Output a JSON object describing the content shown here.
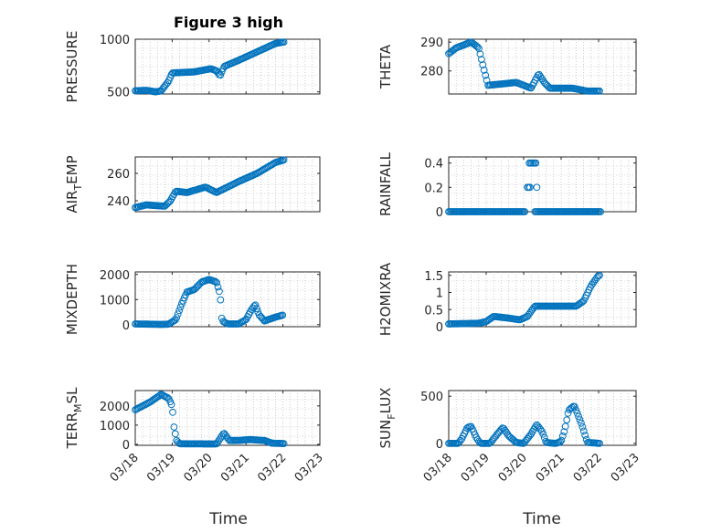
{
  "figure_title": "Figure 3 high",
  "xlabel": "Time",
  "x_ticks": [
    "03/18",
    "03/19",
    "03/20",
    "03/21",
    "03/22",
    "03/23"
  ],
  "marker_color": "#0072BD",
  "chart_data": [
    {
      "type": "scatter",
      "title": "Figure 3 high",
      "ylabel": {
        "main": "PRESSURE",
        "sub": "",
        "tail": ""
      },
      "ylim": [
        480,
        1000
      ],
      "yticks": [
        {
          "v": 500,
          "label": "500"
        },
        {
          "v": 1000,
          "label": "1000"
        }
      ],
      "xlim": [
        0,
        5
      ],
      "series": [
        {
          "knots": [
            [
              0.0,
              510
            ],
            [
              0.3,
              515
            ],
            [
              0.55,
              500
            ],
            [
              0.7,
              510
            ],
            [
              0.9,
              600
            ],
            [
              1.0,
              680
            ],
            [
              1.6,
              690
            ],
            [
              2.05,
              720
            ],
            [
              2.2,
              700
            ],
            [
              2.3,
              650
            ],
            [
              2.4,
              740
            ],
            [
              2.8,
              800
            ],
            [
              3.3,
              880
            ],
            [
              3.8,
              960
            ],
            [
              4.05,
              975
            ]
          ]
        }
      ]
    },
    {
      "type": "scatter",
      "title": "",
      "ylabel": {
        "main": "THETA",
        "sub": "",
        "tail": ""
      },
      "ylim": [
        272,
        291
      ],
      "yticks": [
        {
          "v": 280,
          "label": "280"
        },
        {
          "v": 290,
          "label": "290"
        }
      ],
      "xlim": [
        0,
        5
      ],
      "series": [
        {
          "knots": [
            [
              0.0,
              286
            ],
            [
              0.2,
              288
            ],
            [
              0.6,
              290
            ],
            [
              0.8,
              288
            ],
            [
              0.95,
              280
            ],
            [
              1.05,
              275
            ],
            [
              1.8,
              276
            ],
            [
              2.0,
              275
            ],
            [
              2.2,
              274
            ],
            [
              2.4,
              279
            ],
            [
              2.55,
              276
            ],
            [
              2.7,
              274
            ],
            [
              3.3,
              274
            ],
            [
              3.7,
              273
            ],
            [
              4.05,
              273
            ]
          ]
        }
      ]
    },
    {
      "type": "scatter",
      "title": "",
      "ylabel": {
        "main": "AIR",
        "sub": "T",
        "tail": "EMP"
      },
      "ylim": [
        232,
        272
      ],
      "yticks": [
        {
          "v": 240,
          "label": "240"
        },
        {
          "v": 260,
          "label": "260"
        }
      ],
      "xlim": [
        0,
        5
      ],
      "series": [
        {
          "knots": [
            [
              0.0,
              235
            ],
            [
              0.3,
              237
            ],
            [
              0.8,
              236
            ],
            [
              0.95,
              240
            ],
            [
              1.1,
              247
            ],
            [
              1.4,
              246
            ],
            [
              1.9,
              250
            ],
            [
              2.2,
              246
            ],
            [
              2.5,
              250
            ],
            [
              2.8,
              254
            ],
            [
              3.3,
              260
            ],
            [
              3.8,
              268
            ],
            [
              4.05,
              270
            ]
          ]
        }
      ]
    },
    {
      "type": "scatter",
      "title": "",
      "ylabel": {
        "main": "RAINFALL",
        "sub": "",
        "tail": ""
      },
      "ylim": [
        0,
        0.45
      ],
      "yticks": [
        {
          "v": 0,
          "label": "0"
        },
        {
          "v": 0.2,
          "label": "0.2"
        },
        {
          "v": 0.4,
          "label": "0.4"
        }
      ],
      "xlim": [
        0,
        5
      ],
      "series": [
        {
          "knots": [
            [
              0.0,
              0
            ],
            [
              2.05,
              0
            ]
          ]
        },
        {
          "knots": [
            [
              2.1,
              0.2
            ],
            [
              2.2,
              0.2
            ]
          ]
        },
        {
          "knots": [
            [
              2.15,
              0.4
            ],
            [
              2.35,
              0.4
            ]
          ]
        },
        {
          "knots": [
            [
              2.3,
              0
            ],
            [
              4.05,
              0
            ]
          ]
        },
        {
          "knots": [
            [
              2.35,
              0.2
            ],
            [
              2.35,
              0.2
            ]
          ]
        }
      ]
    },
    {
      "type": "scatter",
      "title": "",
      "ylabel": {
        "main": "MIXDEPTH",
        "sub": "",
        "tail": ""
      },
      "ylim": [
        -80,
        2100
      ],
      "yticks": [
        {
          "v": 0,
          "label": "0"
        },
        {
          "v": 1000,
          "label": "1000"
        },
        {
          "v": 2000,
          "label": "2000"
        }
      ],
      "xlim": [
        0,
        5
      ],
      "series": [
        {
          "knots": [
            [
              0.0,
              30
            ],
            [
              0.7,
              10
            ],
            [
              0.9,
              20
            ],
            [
              1.1,
              200
            ],
            [
              1.25,
              800
            ],
            [
              1.4,
              1300
            ],
            [
              1.6,
              1400
            ],
            [
              1.8,
              1700
            ],
            [
              2.0,
              1800
            ],
            [
              2.2,
              1700
            ],
            [
              2.3,
              1200
            ],
            [
              2.35,
              150
            ],
            [
              2.5,
              30
            ],
            [
              2.8,
              30
            ],
            [
              3.0,
              200
            ],
            [
              3.15,
              600
            ],
            [
              3.25,
              800
            ],
            [
              3.35,
              400
            ],
            [
              3.5,
              150
            ],
            [
              3.8,
              300
            ],
            [
              4.0,
              380
            ]
          ]
        }
      ]
    },
    {
      "type": "scatter",
      "title": "",
      "ylabel": {
        "main": "H2OMIXRA",
        "sub": "",
        "tail": ""
      },
      "ylim": [
        0,
        1.6
      ],
      "yticks": [
        {
          "v": 0,
          "label": "0"
        },
        {
          "v": 0.5,
          "label": "0.5"
        },
        {
          "v": 1,
          "label": "1"
        },
        {
          "v": 1.5,
          "label": "1.5"
        }
      ],
      "xlim": [
        0,
        5
      ],
      "series": [
        {
          "knots": [
            [
              0.0,
              0.08
            ],
            [
              0.8,
              0.1
            ],
            [
              1.0,
              0.15
            ],
            [
              1.2,
              0.3
            ],
            [
              1.6,
              0.25
            ],
            [
              1.9,
              0.2
            ],
            [
              2.1,
              0.3
            ],
            [
              2.3,
              0.6
            ],
            [
              2.5,
              0.6
            ],
            [
              3.4,
              0.6
            ],
            [
              3.6,
              0.75
            ],
            [
              3.8,
              1.2
            ],
            [
              4.0,
              1.5
            ],
            [
              4.05,
              1.5
            ]
          ]
        }
      ]
    },
    {
      "type": "scatter",
      "title": "",
      "ylabel": {
        "main": "TERR",
        "sub": "M",
        "tail": "SL"
      },
      "ylim": [
        -50,
        2800
      ],
      "yticks": [
        {
          "v": 0,
          "label": "0"
        },
        {
          "v": 1000,
          "label": "1000"
        },
        {
          "v": 2000,
          "label": "2000"
        }
      ],
      "xlim": [
        0,
        5
      ],
      "series": [
        {
          "knots": [
            [
              0.0,
              1800
            ],
            [
              0.4,
              2200
            ],
            [
              0.7,
              2600
            ],
            [
              0.9,
              2400
            ],
            [
              1.0,
              2000
            ],
            [
              1.05,
              900
            ],
            [
              1.12,
              200
            ],
            [
              1.2,
              30
            ],
            [
              2.2,
              20
            ],
            [
              2.3,
              300
            ],
            [
              2.4,
              600
            ],
            [
              2.55,
              200
            ],
            [
              2.8,
              200
            ],
            [
              3.1,
              250
            ],
            [
              3.5,
              200
            ],
            [
              3.7,
              60
            ],
            [
              4.05,
              40
            ]
          ]
        }
      ]
    },
    {
      "type": "scatter",
      "title": "",
      "ylabel": {
        "main": "SUN",
        "sub": "F",
        "tail": "LUX"
      },
      "ylim": [
        -20,
        560
      ],
      "yticks": [
        {
          "v": 0,
          "label": "0"
        },
        {
          "v": 500,
          "label": "500"
        }
      ],
      "xlim": [
        0,
        5
      ],
      "series": [
        {
          "knots": [
            [
              0.0,
              0
            ],
            [
              0.25,
              0
            ],
            [
              0.35,
              50
            ],
            [
              0.5,
              170
            ],
            [
              0.6,
              180
            ],
            [
              0.75,
              50
            ],
            [
              0.85,
              0
            ],
            [
              1.1,
              0
            ],
            [
              1.3,
              100
            ],
            [
              1.45,
              170
            ],
            [
              1.6,
              80
            ],
            [
              1.8,
              10
            ],
            [
              2.0,
              0
            ],
            [
              2.2,
              100
            ],
            [
              2.35,
              200
            ],
            [
              2.5,
              120
            ],
            [
              2.6,
              10
            ],
            [
              2.85,
              0
            ],
            [
              3.0,
              20
            ],
            [
              3.1,
              150
            ],
            [
              3.2,
              350
            ],
            [
              3.35,
              400
            ],
            [
              3.55,
              200
            ],
            [
              3.7,
              10
            ],
            [
              4.05,
              0
            ]
          ]
        }
      ]
    }
  ]
}
